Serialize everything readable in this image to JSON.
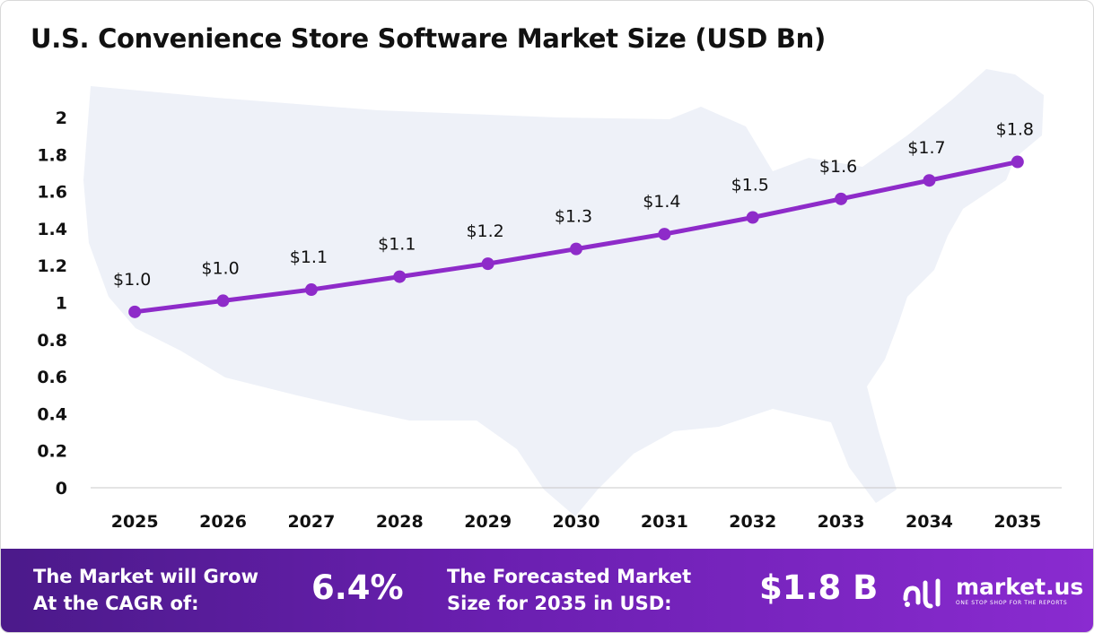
{
  "title": "U.S. Convenience Store Software Market Size (USD Bn)",
  "chart_data": {
    "type": "line",
    "title": "U.S. Convenience Store Software Market Size (USD Bn)",
    "x": [
      "2025",
      "2026",
      "2027",
      "2028",
      "2029",
      "2030",
      "2031",
      "2032",
      "2033",
      "2034",
      "2035"
    ],
    "series": [
      {
        "values": [
          0.95,
          1.01,
          1.07,
          1.14,
          1.21,
          1.29,
          1.37,
          1.46,
          1.56,
          1.66,
          1.76
        ]
      }
    ],
    "data_labels": [
      "$1.0",
      "$1.0",
      "$1.1",
      "$1.1",
      "$1.2",
      "$1.3",
      "$1.4",
      "$1.5",
      "$1.6",
      "$1.7",
      "$1.8"
    ],
    "y_ticks": [
      "0",
      "0.2",
      "0.4",
      "0.6",
      "0.8",
      "1",
      "1.2",
      "1.4",
      "1.6",
      "1.8",
      "2"
    ],
    "ylim": [
      0,
      2
    ],
    "grid": false,
    "line_color": "#8e2bc9",
    "marker_color": "#8e2bc9"
  },
  "footer": {
    "cagr_label_line1": "The Market will Grow",
    "cagr_label_line2": "At the CAGR of:",
    "cagr_value": "6.4%",
    "forecast_label_line1": "The Forecasted Market",
    "forecast_label_line2": "Size for 2035 in USD:",
    "forecast_value": "$1.8 B"
  },
  "brand": {
    "name": "market.us",
    "tagline": "ONE STOP SHOP FOR THE REPORTS",
    "logo_icon": "market-us-logo-icon"
  },
  "colors": {
    "accent": "#8e2bc9",
    "footer_start": "#4b1a8a",
    "footer_end": "#8a2bd0",
    "map_fill": "#eef1f8"
  }
}
